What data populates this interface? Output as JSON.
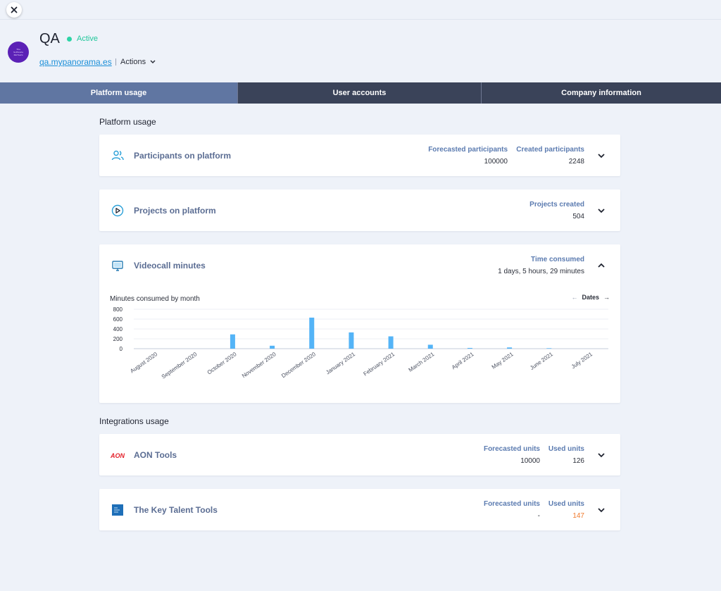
{
  "close_icon": "close-icon",
  "company": {
    "name": "QA",
    "status": "Active",
    "domain": "qa.mypanorama.es",
    "actions_label": "Actions",
    "logo_lines": [
      "The",
      "Software",
      "Partners"
    ]
  },
  "tabs": [
    {
      "label": "Platform usage",
      "active": true
    },
    {
      "label": "User accounts",
      "active": false
    },
    {
      "label": "Company information",
      "active": false
    }
  ],
  "platform_usage": {
    "section_title": "Platform usage",
    "participants": {
      "title": "Participants on platform",
      "icon": "users-icon",
      "forecast_label": "Forecasted participants",
      "forecast_value": "100000",
      "created_label": "Created participants",
      "created_value": "2248"
    },
    "projects": {
      "title": "Projects on platform",
      "icon": "play-circle-icon",
      "created_label": "Projects created",
      "created_value": "504"
    },
    "videocall": {
      "title": "Videocall minutes",
      "icon": "monitor-icon",
      "time_label": "Time consumed",
      "time_value": "1 days, 5 hours, 29 minutes",
      "chart_title": "Minutes consumed by month",
      "dates_label": "Dates"
    }
  },
  "integrations": {
    "section_title": "Integrations usage",
    "aon": {
      "title": "AON Tools",
      "logo_text": "AON",
      "forecast_label": "Forecasted units",
      "forecast_value": "10000",
      "used_label": "Used units",
      "used_value": "126"
    },
    "key_talent": {
      "title": "The Key Talent Tools",
      "logo_text": "The Key Talent",
      "forecast_label": "Forecasted units",
      "forecast_value": "-",
      "used_label": "Used units",
      "used_value": "147"
    }
  },
  "colors": {
    "bar": "#54b4f7",
    "active_tab": "#6076a2",
    "tab_bg": "#3a4359",
    "status_green": "#21c79b",
    "used_orange": "#f07a2d"
  },
  "chart_data": {
    "type": "bar",
    "title": "Minutes consumed by month",
    "categories": [
      "August 2020",
      "September 2020",
      "October 2020",
      "November 2020",
      "December 2020",
      "January 2021",
      "February 2021",
      "March 2021",
      "April 2021",
      "May 2021",
      "June 2021",
      "July 2021"
    ],
    "values": [
      0,
      0,
      290,
      60,
      630,
      330,
      250,
      80,
      15,
      25,
      10,
      0
    ],
    "yticks": [
      0,
      200,
      400,
      600,
      800
    ],
    "ylim": [
      0,
      800
    ],
    "grid": true,
    "legend": "none"
  }
}
